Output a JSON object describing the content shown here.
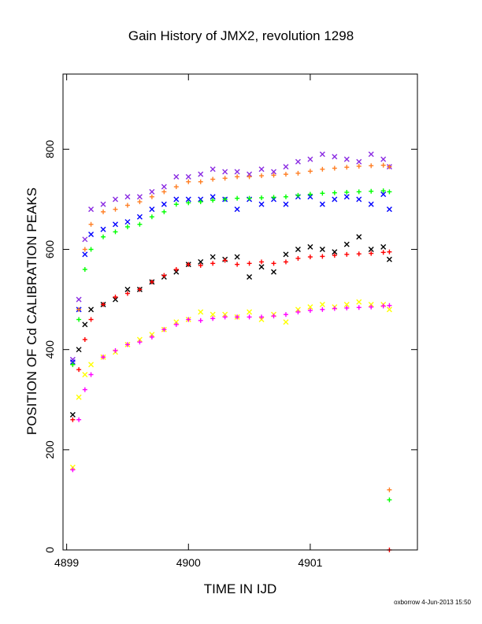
{
  "chart_data": {
    "type": "scatter",
    "title": "Gain History of JMX2, revolution 1298",
    "xlabel": "TIME IN IJD",
    "ylabel": "POSITION OF Cd CALIBRATION PEAKS",
    "xlim": [
      4898.97,
      4901.88
    ],
    "ylim": [
      0,
      950
    ],
    "xticks": [
      4899,
      4900,
      4901
    ],
    "yticks": [
      0,
      200,
      400,
      600,
      800
    ],
    "grid": false,
    "legend": "none",
    "series": [
      {
        "color": "#8a2be2",
        "marker": "x",
        "x": [
          4899.05,
          4899.1,
          4899.15,
          4899.2,
          4899.3,
          4899.4,
          4899.5,
          4899.6,
          4899.7,
          4899.8,
          4899.9,
          4900.0,
          4900.1,
          4900.2,
          4900.3,
          4900.4,
          4900.5,
          4900.6,
          4900.7,
          4900.8,
          4900.9,
          4901.0,
          4901.1,
          4901.2,
          4901.3,
          4901.4,
          4901.5,
          4901.6,
          4901.65
        ],
        "y": [
          380,
          500,
          620,
          680,
          690,
          700,
          705,
          705,
          715,
          725,
          745,
          745,
          750,
          760,
          755,
          755,
          750,
          760,
          755,
          765,
          775,
          780,
          790,
          785,
          780,
          775,
          790,
          780,
          765
        ]
      },
      {
        "color": "#0000ff",
        "marker": "x",
        "x": [
          4899.05,
          4899.1,
          4899.15,
          4899.2,
          4899.3,
          4899.4,
          4899.5,
          4899.6,
          4899.7,
          4899.8,
          4899.9,
          4900.0,
          4900.1,
          4900.2,
          4900.3,
          4900.4,
          4900.5,
          4900.6,
          4900.7,
          4900.8,
          4900.9,
          4901.0,
          4901.1,
          4901.2,
          4901.3,
          4901.4,
          4901.5,
          4901.6,
          4901.65
        ],
        "y": [
          375,
          480,
          590,
          630,
          640,
          650,
          655,
          665,
          680,
          690,
          700,
          700,
          700,
          705,
          700,
          680,
          700,
          690,
          700,
          690,
          705,
          705,
          690,
          700,
          705,
          700,
          690,
          710,
          680
        ]
      },
      {
        "color": "#000000",
        "marker": "x",
        "x": [
          4899.05,
          4899.1,
          4899.15,
          4899.2,
          4899.3,
          4899.4,
          4899.5,
          4899.6,
          4899.7,
          4899.8,
          4899.9,
          4900.0,
          4900.1,
          4900.2,
          4900.3,
          4900.4,
          4900.5,
          4900.6,
          4900.7,
          4900.8,
          4900.9,
          4901.0,
          4901.1,
          4901.2,
          4901.3,
          4901.4,
          4901.5,
          4901.6,
          4901.65
        ],
        "y": [
          270,
          400,
          450,
          480,
          490,
          500,
          520,
          520,
          535,
          545,
          555,
          570,
          575,
          585,
          580,
          585,
          545,
          565,
          555,
          590,
          600,
          605,
          600,
          595,
          610,
          625,
          600,
          605,
          580
        ]
      },
      {
        "color": "#ffff00",
        "marker": "x",
        "x": [
          4899.05,
          4899.1,
          4899.15,
          4899.2,
          4899.3,
          4899.4,
          4899.5,
          4899.6,
          4899.7,
          4899.8,
          4899.9,
          4900.0,
          4900.1,
          4900.2,
          4900.3,
          4900.4,
          4900.5,
          4900.6,
          4900.7,
          4900.8,
          4900.9,
          4901.0,
          4901.1,
          4901.2,
          4901.3,
          4901.4,
          4901.5,
          4901.6,
          4901.65
        ],
        "y": [
          165,
          305,
          350,
          370,
          385,
          395,
          410,
          420,
          430,
          440,
          455,
          460,
          475,
          470,
          470,
          465,
          475,
          460,
          470,
          455,
          480,
          485,
          490,
          485,
          490,
          495,
          490,
          490,
          480
        ]
      },
      {
        "color": "#ff7f24",
        "marker": "+",
        "x": [
          4899.05,
          4899.1,
          4899.15,
          4899.2,
          4899.3,
          4899.4,
          4899.5,
          4899.6,
          4899.7,
          4899.8,
          4899.9,
          4900.0,
          4900.1,
          4900.2,
          4900.3,
          4900.4,
          4900.5,
          4900.6,
          4900.7,
          4900.8,
          4900.9,
          4901.0,
          4901.1,
          4901.2,
          4901.3,
          4901.4,
          4901.5,
          4901.6,
          4901.65,
          4901.65
        ],
        "y": [
          370,
          480,
          600,
          650,
          675,
          680,
          688,
          695,
          705,
          715,
          725,
          735,
          735,
          740,
          742,
          745,
          745,
          747,
          748,
          750,
          752,
          756,
          760,
          762,
          764,
          766,
          767,
          768,
          765,
          120
        ]
      },
      {
        "color": "#00ff00",
        "marker": "+",
        "x": [
          4899.05,
          4899.1,
          4899.15,
          4899.2,
          4899.3,
          4899.4,
          4899.5,
          4899.6,
          4899.7,
          4899.8,
          4899.9,
          4900.0,
          4900.1,
          4900.2,
          4900.3,
          4900.4,
          4900.5,
          4900.6,
          4900.7,
          4900.8,
          4900.9,
          4901.0,
          4901.1,
          4901.2,
          4901.3,
          4901.4,
          4901.5,
          4901.6,
          4901.65,
          4901.65
        ],
        "y": [
          370,
          460,
          560,
          600,
          625,
          635,
          645,
          650,
          665,
          675,
          690,
          693,
          695,
          698,
          700,
          702,
          702,
          703,
          704,
          705,
          708,
          710,
          712,
          713,
          714,
          715,
          716,
          717,
          715,
          100
        ]
      },
      {
        "color": "#ff0000",
        "marker": "+",
        "x": [
          4899.05,
          4899.1,
          4899.15,
          4899.2,
          4899.3,
          4899.4,
          4899.5,
          4899.6,
          4899.7,
          4899.8,
          4899.9,
          4900.0,
          4900.1,
          4900.2,
          4900.3,
          4900.4,
          4900.5,
          4900.6,
          4900.7,
          4900.8,
          4900.9,
          4901.0,
          4901.1,
          4901.2,
          4901.3,
          4901.4,
          4901.5,
          4901.6,
          4901.65,
          4901.65
        ],
        "y": [
          260,
          360,
          420,
          460,
          490,
          505,
          512,
          520,
          535,
          548,
          560,
          570,
          568,
          572,
          578,
          570,
          572,
          575,
          572,
          575,
          582,
          585,
          586,
          588,
          590,
          591,
          592,
          594,
          595,
          0
        ]
      },
      {
        "color": "#ff00ff",
        "marker": "+",
        "x": [
          4899.05,
          4899.1,
          4899.15,
          4899.2,
          4899.3,
          4899.4,
          4899.5,
          4899.6,
          4899.7,
          4899.8,
          4899.9,
          4900.0,
          4900.1,
          4900.2,
          4900.3,
          4900.4,
          4900.5,
          4900.6,
          4900.7,
          4900.8,
          4900.9,
          4901.0,
          4901.1,
          4901.2,
          4901.3,
          4901.4,
          4901.5,
          4901.6,
          4901.65
        ],
        "y": [
          160,
          260,
          320,
          350,
          385,
          398,
          410,
          415,
          425,
          440,
          450,
          460,
          458,
          462,
          465,
          465,
          465,
          465,
          467,
          470,
          475,
          478,
          480,
          482,
          483,
          484,
          485,
          487,
          488
        ]
      }
    ]
  },
  "footer": "oxborrow 4-Jun-2013 15:50"
}
